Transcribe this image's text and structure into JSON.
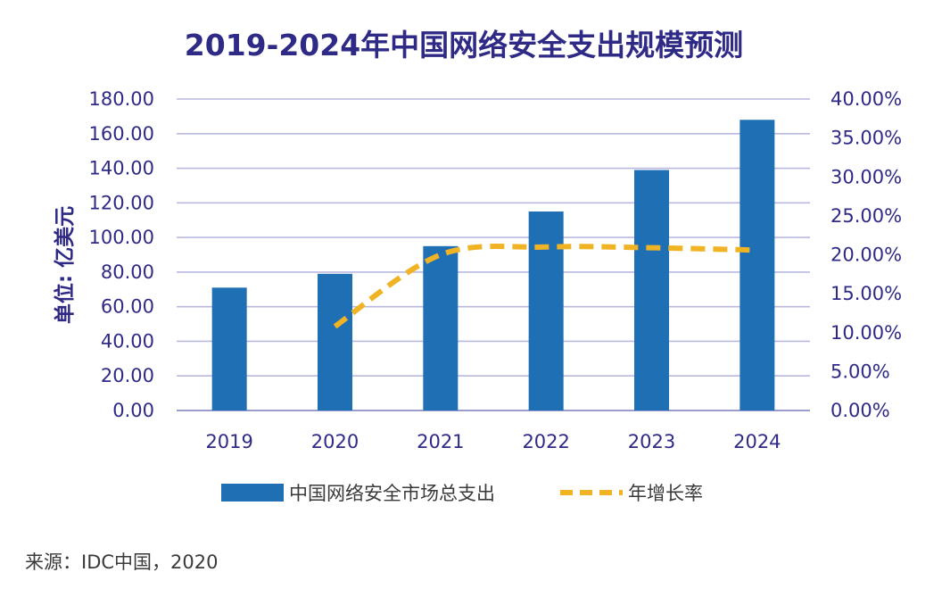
{
  "chart_data": {
    "type": "bar+line",
    "title": "2019-2024年中国网络安全支出规模预测",
    "ylabel": "单位: 亿美元",
    "categories": [
      "2019",
      "2020",
      "2021",
      "2022",
      "2023",
      "2024"
    ],
    "series": [
      {
        "name": "中国网络安全市场总支出",
        "type": "bar",
        "axis": "left",
        "color": "#1f6fb5",
        "values": [
          71,
          79,
          95,
          115,
          139,
          168
        ]
      },
      {
        "name": "年增长率",
        "type": "line",
        "axis": "right",
        "color": "#f0b323",
        "style": "dashed",
        "x": [
          "2020",
          "2021",
          "2022",
          "2023",
          "2024"
        ],
        "values": [
          10.8,
          20.0,
          21.0,
          20.9,
          20.6
        ]
      }
    ],
    "y_left": {
      "ylim": [
        0,
        180
      ],
      "ticks": [
        "0.00",
        "20.00",
        "40.00",
        "60.00",
        "80.00",
        "100.00",
        "120.00",
        "140.00",
        "160.00",
        "180.00"
      ]
    },
    "y_right": {
      "ylim": [
        0,
        40
      ],
      "ticks": [
        "0.00%",
        "5.00%",
        "10.00%",
        "15.00%",
        "20.00%",
        "25.00%",
        "30.00%",
        "35.00%",
        "40.00%"
      ]
    },
    "grid": true,
    "legend_position": "bottom",
    "source": "来源：IDC中国，2020"
  }
}
